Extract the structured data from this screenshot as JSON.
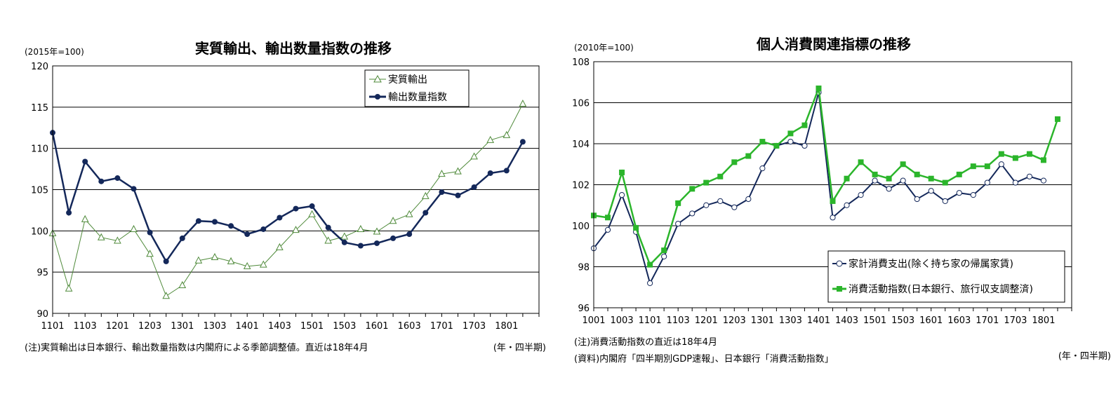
{
  "charts": [
    {
      "title": "実質輸出、輸出数量指数の推移",
      "unit": "(2015年=100)",
      "period_label": "(年・四半期)",
      "notes": [
        "(注)実質輸出は日本銀行、輸出数量指数は内閣府による季節調整値。直近は18年4月"
      ]
    },
    {
      "title": "個人消費関連指標の推移",
      "unit": "(2010年=100)",
      "period_label": "(年・四半期)",
      "notes": [
        "(注)消費活動指数の直近は18年4月",
        "(資料)内閣府「四半期別GDP速報」、日本銀行「消費活動指数」"
      ]
    }
  ],
  "chart_data": [
    {
      "type": "line",
      "title": "実質輸出、輸出数量指数の推移",
      "ylim": [
        90,
        120
      ],
      "yticks": [
        90,
        95,
        100,
        105,
        110,
        115,
        120
      ],
      "grid": true,
      "legend_position": "top-right",
      "x_tick_labels": [
        "1101",
        "1103",
        "1201",
        "1203",
        "1301",
        "1303",
        "1401",
        "1403",
        "1501",
        "1503",
        "1601",
        "1603",
        "1701",
        "1703",
        "1801"
      ],
      "x": [
        "1101",
        "1102",
        "1103",
        "1104",
        "1201",
        "1202",
        "1203",
        "1204",
        "1301",
        "1302",
        "1303",
        "1304",
        "1401",
        "1402",
        "1403",
        "1404",
        "1501",
        "1502",
        "1503",
        "1504",
        "1601",
        "1602",
        "1603",
        "1604",
        "1701",
        "1702",
        "1703",
        "1704",
        "1801",
        "1802"
      ],
      "series": [
        {
          "name": "実質輸出",
          "color": "#4f8a3a",
          "marker": "open-triangle",
          "values": [
            99.7,
            93.0,
            101.4,
            99.2,
            98.8,
            100.2,
            97.2,
            92.1,
            93.4,
            96.4,
            96.8,
            96.3,
            95.7,
            95.9,
            98.0,
            100.1,
            102.0,
            98.8,
            99.3,
            100.2,
            99.9,
            101.2,
            102.0,
            104.2,
            106.9,
            107.2,
            109.0,
            111.0,
            111.6,
            115.4
          ]
        },
        {
          "name": "輸出数量指数",
          "color": "#14285a",
          "marker": "filled-circle",
          "values": [
            111.9,
            102.2,
            108.4,
            106.0,
            106.4,
            105.1,
            99.8,
            96.3,
            99.1,
            101.2,
            101.1,
            100.6,
            99.6,
            100.2,
            101.6,
            102.7,
            103.0,
            100.4,
            98.6,
            98.2,
            98.5,
            99.1,
            99.6,
            102.2,
            104.7,
            104.3,
            105.3,
            107.0,
            107.3,
            110.8
          ]
        }
      ]
    },
    {
      "type": "line",
      "title": "個人消費関連指標の推移",
      "ylim": [
        96,
        108
      ],
      "yticks": [
        96,
        98,
        100,
        102,
        104,
        106,
        108
      ],
      "grid": true,
      "legend_position": "bottom-right",
      "x_tick_labels": [
        "1001",
        "1003",
        "1101",
        "1103",
        "1201",
        "1203",
        "1301",
        "1303",
        "1401",
        "1403",
        "1501",
        "1503",
        "1601",
        "1603",
        "1701",
        "1703",
        "1801"
      ],
      "x": [
        "1001",
        "1002",
        "1003",
        "1004",
        "1101",
        "1102",
        "1103",
        "1104",
        "1201",
        "1202",
        "1203",
        "1204",
        "1301",
        "1302",
        "1303",
        "1304",
        "1401",
        "1402",
        "1403",
        "1404",
        "1501",
        "1502",
        "1503",
        "1504",
        "1601",
        "1602",
        "1603",
        "1604",
        "1701",
        "1702",
        "1703",
        "1704",
        "1801",
        "1802"
      ],
      "series": [
        {
          "name": "家計消費支出(除く持ち家の帰属家賃)",
          "color": "#14285a",
          "marker": "open-circle",
          "values": [
            98.9,
            99.8,
            101.5,
            99.7,
            97.2,
            98.5,
            100.1,
            100.6,
            101.0,
            101.2,
            100.9,
            101.3,
            102.8,
            103.9,
            104.1,
            103.9,
            106.5,
            100.4,
            101.0,
            101.5,
            102.2,
            101.8,
            102.2,
            101.3,
            101.7,
            101.2,
            101.6,
            101.5,
            102.1,
            103.0,
            102.1,
            102.4,
            102.2,
            null
          ]
        },
        {
          "name": "消費活動指数(日本銀行、旅行収支調整済)",
          "color": "#2bb52b",
          "marker": "filled-square",
          "values": [
            100.5,
            100.4,
            102.6,
            99.9,
            98.1,
            98.8,
            101.1,
            101.8,
            102.1,
            102.4,
            103.1,
            103.4,
            104.1,
            103.9,
            104.5,
            104.9,
            106.7,
            101.2,
            102.3,
            103.1,
            102.5,
            102.3,
            103.0,
            102.5,
            102.3,
            102.1,
            102.5,
            102.9,
            102.9,
            103.5,
            103.3,
            103.5,
            103.2,
            105.2
          ]
        }
      ]
    }
  ]
}
